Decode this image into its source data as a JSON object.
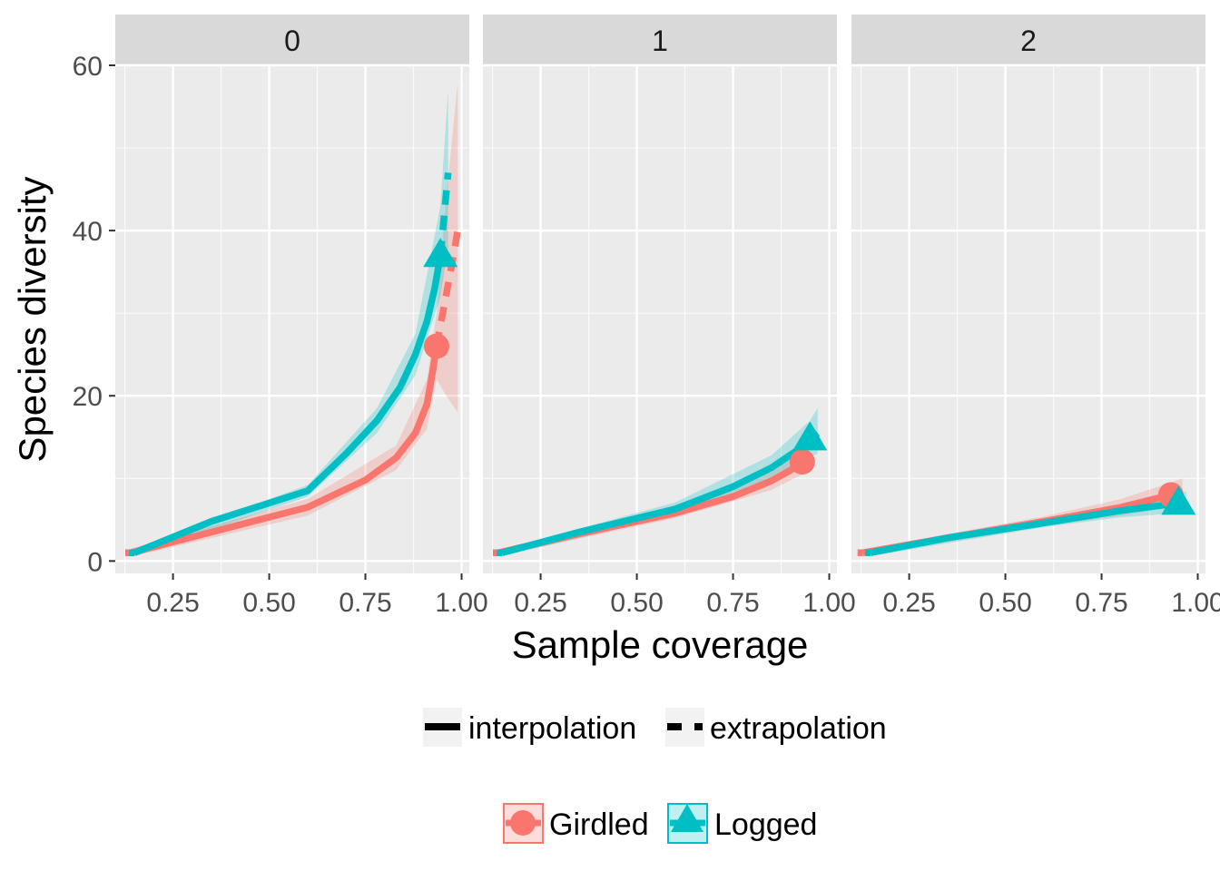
{
  "chart_data": {
    "type": "line",
    "xlabel": "Sample coverage",
    "ylabel": "Species diversity",
    "xlim": [
      0.1,
      1.02
    ],
    "ylim": [
      -1.5,
      60
    ],
    "x_ticks": [
      "0.25",
      "0.50",
      "0.75",
      "1.00"
    ],
    "x_tick_values": [
      0.25,
      0.5,
      0.75,
      1.0
    ],
    "y_ticks": [
      "0",
      "20",
      "40",
      "60"
    ],
    "y_tick_values": [
      0,
      20,
      40,
      60
    ],
    "colors": {
      "Girdled": "#F8766D",
      "Logged": "#00BFC4"
    },
    "line_type_legend": [
      "interpolation",
      "extrapolation"
    ],
    "group_legend": [
      "Girdled",
      "Logged"
    ],
    "facets": [
      {
        "label": "0",
        "series": [
          {
            "name": "Girdled",
            "interpolation": [
              [
                0.14,
                1
              ],
              [
                0.35,
                3.5
              ],
              [
                0.6,
                6.5
              ],
              [
                0.75,
                9.8
              ],
              [
                0.83,
                12.5
              ],
              [
                0.88,
                15.5
              ],
              [
                0.91,
                19
              ],
              [
                0.925,
                23
              ],
              [
                0.935,
                26
              ]
            ],
            "extrapolation": [
              [
                0.935,
                26
              ],
              [
                0.955,
                31
              ],
              [
                0.975,
                36
              ],
              [
                0.99,
                40
              ]
            ],
            "ci": [
              [
                0.14,
                0.5,
                1.5
              ],
              [
                0.6,
                5.5,
                7.5
              ],
              [
                0.83,
                11,
                14
              ],
              [
                0.91,
                16,
                22
              ],
              [
                0.935,
                22,
                30
              ],
              [
                0.96,
                20,
                44
              ],
              [
                0.99,
                18,
                58
              ]
            ],
            "observed": [
              0.935,
              26
            ],
            "marker": "circle"
          },
          {
            "name": "Logged",
            "interpolation": [
              [
                0.15,
                1
              ],
              [
                0.35,
                4.8
              ],
              [
                0.6,
                8.5
              ],
              [
                0.7,
                13
              ],
              [
                0.78,
                17
              ],
              [
                0.84,
                21
              ],
              [
                0.88,
                25
              ],
              [
                0.91,
                29
              ],
              [
                0.93,
                33
              ],
              [
                0.945,
                37
              ]
            ],
            "extrapolation": [
              [
                0.945,
                37
              ],
              [
                0.955,
                42
              ],
              [
                0.965,
                47
              ]
            ],
            "ci": [
              [
                0.15,
                0.6,
                1.5
              ],
              [
                0.6,
                7.8,
                9.2
              ],
              [
                0.78,
                15.5,
                18.5
              ],
              [
                0.88,
                22.5,
                27.5
              ],
              [
                0.945,
                32,
                43
              ],
              [
                0.965,
                38,
                57
              ]
            ],
            "observed": [
              0.945,
              37
            ],
            "marker": "triangle"
          }
        ]
      },
      {
        "label": "1",
        "series": [
          {
            "name": "Girdled",
            "interpolation": [
              [
                0.14,
                1
              ],
              [
                0.35,
                3.3
              ],
              [
                0.6,
                5.8
              ],
              [
                0.75,
                7.8
              ],
              [
                0.85,
                9.7
              ],
              [
                0.9,
                11
              ],
              [
                0.93,
                12
              ]
            ],
            "extrapolation": [
              [
                0.93,
                12
              ],
              [
                0.945,
                13
              ]
            ],
            "ci": [
              [
                0.14,
                0.6,
                1.4
              ],
              [
                0.6,
                5.2,
                6.4
              ],
              [
                0.85,
                8.6,
                10.8
              ],
              [
                0.93,
                10.5,
                13.5
              ],
              [
                0.945,
                11,
                15
              ]
            ],
            "observed": [
              0.93,
              12
            ],
            "marker": "circle"
          },
          {
            "name": "Logged",
            "interpolation": [
              [
                0.15,
                1
              ],
              [
                0.35,
                3.5
              ],
              [
                0.6,
                6.3
              ],
              [
                0.75,
                9
              ],
              [
                0.85,
                11.3
              ],
              [
                0.92,
                13.5
              ],
              [
                0.95,
                14.8
              ]
            ],
            "extrapolation": [
              [
                0.95,
                14.8
              ],
              [
                0.97,
                15.5
              ]
            ],
            "ci": [
              [
                0.15,
                0.6,
                1.4
              ],
              [
                0.6,
                5.5,
                7.1
              ],
              [
                0.85,
                9.8,
                12.8
              ],
              [
                0.95,
                12.5,
                17
              ],
              [
                0.97,
                13,
                18.5
              ]
            ],
            "observed": [
              0.95,
              14.8
            ],
            "marker": "triangle"
          }
        ]
      },
      {
        "label": "2",
        "series": [
          {
            "name": "Girdled",
            "interpolation": [
              [
                0.13,
                1
              ],
              [
                0.35,
                2.8
              ],
              [
                0.6,
                4.8
              ],
              [
                0.8,
                6.5
              ],
              [
                0.93,
                8
              ]
            ],
            "extrapolation": [
              [
                0.93,
                8
              ],
              [
                0.96,
                8.2
              ]
            ],
            "ci": [
              [
                0.13,
                0.6,
                1.4
              ],
              [
                0.6,
                4.2,
                5.4
              ],
              [
                0.8,
                5.5,
                7.5
              ],
              [
                0.93,
                6.5,
                9.5
              ],
              [
                0.96,
                6.5,
                10
              ]
            ],
            "observed": [
              0.93,
              8
            ],
            "marker": "circle"
          },
          {
            "name": "Logged",
            "interpolation": [
              [
                0.15,
                1
              ],
              [
                0.35,
                2.8
              ],
              [
                0.6,
                4.6
              ],
              [
                0.8,
                6.1
              ],
              [
                0.95,
                7
              ]
            ],
            "extrapolation": [
              [
                0.95,
                7
              ],
              [
                0.97,
                7.1
              ]
            ],
            "ci": [
              [
                0.15,
                0.6,
                1.4
              ],
              [
                0.6,
                4.1,
                5.1
              ],
              [
                0.8,
                5.3,
                6.9
              ],
              [
                0.95,
                5.8,
                8.2
              ],
              [
                0.97,
                5.8,
                8.4
              ]
            ],
            "observed": [
              0.95,
              7
            ],
            "marker": "triangle"
          }
        ]
      }
    ]
  }
}
